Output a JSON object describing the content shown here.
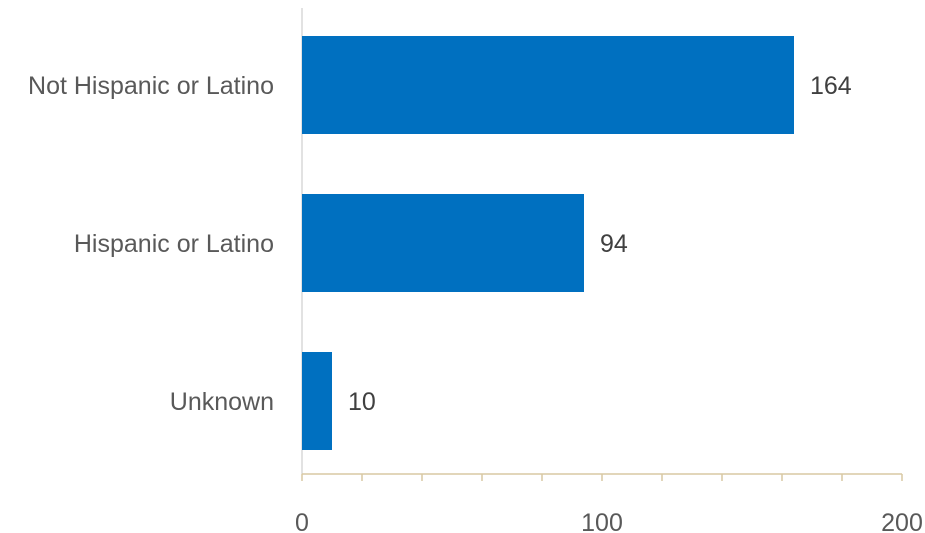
{
  "chart_data": {
    "type": "bar",
    "orientation": "horizontal",
    "title": "",
    "xlabel": "",
    "ylabel": "",
    "categories": [
      "Not Hispanic or Latino",
      "Hispanic or Latino",
      "Unknown"
    ],
    "values": [
      164,
      94,
      10
    ],
    "data_labels": [
      "164",
      "94",
      "10"
    ],
    "xlim": [
      0,
      200
    ],
    "major_ticks": [
      0,
      100,
      200
    ],
    "tick_labels": [
      "0",
      "100",
      "200"
    ],
    "minor_tick_step": 20,
    "grid": false,
    "legend": "none",
    "colors": {
      "bar": "#0070C0",
      "axis_x": "#D9C9A3",
      "axis_y": "#D9D9D9",
      "text": "#595959",
      "data_label": "#404040"
    }
  }
}
